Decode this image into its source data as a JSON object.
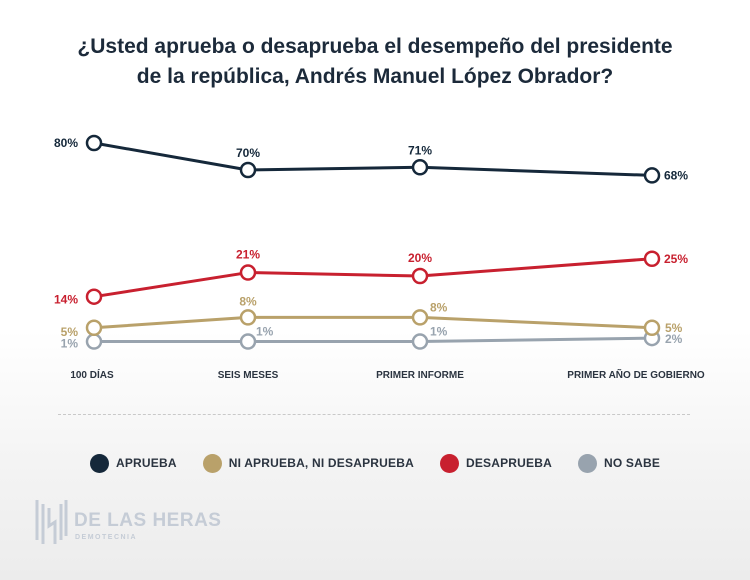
{
  "title": {
    "line1": "¿Usted aprueba o desaprueba el desempeño del presidente",
    "line2": "de la república, Andrés Manuel López Obrador?"
  },
  "chart_data": {
    "type": "line",
    "categories": [
      "100 DÍAS",
      "SEIS MESES",
      "PRIMER INFORME",
      "PRIMER AÑO DE GOBIERNO"
    ],
    "series": [
      {
        "name": "APRUEBA",
        "values": [
          80,
          70,
          71,
          68
        ],
        "labels": [
          "80%",
          "70%",
          "71%",
          "68%"
        ],
        "color": "#15283a"
      },
      {
        "name": "DESAPRUEBA",
        "values": [
          14,
          21,
          20,
          25
        ],
        "labels": [
          "14%",
          "21%",
          "20%",
          "25%"
        ],
        "color": "#c8202f"
      },
      {
        "name": "NI APRUEBA, NI DESAPRUEBA",
        "values": [
          5,
          8,
          8,
          5
        ],
        "labels": [
          "5%",
          "8%",
          "8%",
          "5%"
        ],
        "color": "#b9a16a"
      },
      {
        "name": "NO SABE",
        "values": [
          1,
          1,
          1,
          2
        ],
        "labels": [
          "1%",
          "1%",
          "1%",
          "2%"
        ],
        "color": "#98a3ae"
      }
    ],
    "legend_placement": "bottom",
    "grid": false
  },
  "legend": [
    {
      "label": "APRUEBA",
      "color": "#15283a"
    },
    {
      "label": "NI APRUEBA, NI DESAPRUEBA",
      "color": "#b9a16a"
    },
    {
      "label": "DESAPRUEBA",
      "color": "#c8202f"
    },
    {
      "label": "NO SABE",
      "color": "#98a3ae"
    }
  ],
  "logo": {
    "name": "DE LAS HERAS",
    "subtitle": "DEMOTECNIA"
  }
}
